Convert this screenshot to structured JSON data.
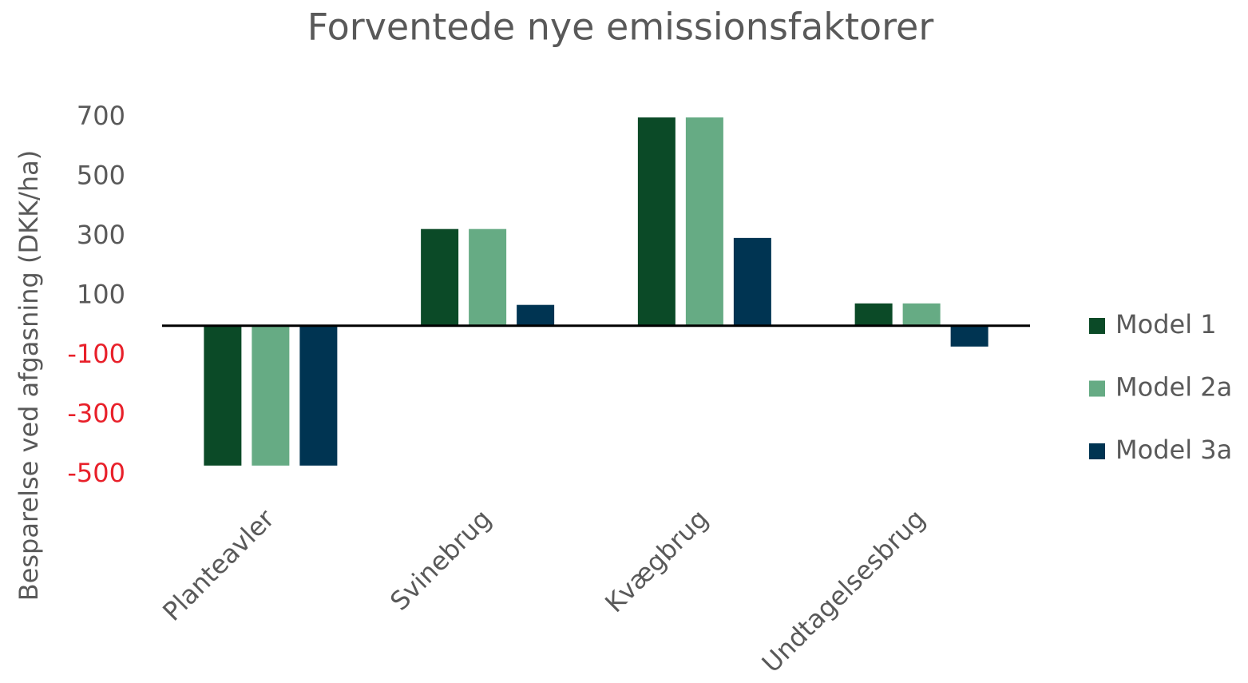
{
  "chart_data": {
    "type": "bar",
    "title": "Forventede nye emissionsfaktorer",
    "y_label": "Besparelse ved afgasning (DKK/ha)",
    "categories": [
      "Planteavler",
      "Svinebrug",
      "Kvægbrug",
      "Undtagelsesbrug"
    ],
    "series": [
      {
        "name": "Model 1",
        "color": "#0b4a27",
        "values": [
          -470,
          325,
          700,
          75
        ]
      },
      {
        "name": "Model 2a",
        "color": "#66ab84",
        "values": [
          -470,
          325,
          700,
          75
        ]
      },
      {
        "name": "Model 3a",
        "color": "#003452",
        "values": [
          -470,
          70,
          295,
          -70
        ]
      }
    ],
    "ylim": [
      -500,
      700
    ],
    "yticks": [
      -500,
      -300,
      -100,
      100,
      300,
      500,
      700
    ],
    "negative_tick_color": "#e8202a",
    "grid": false,
    "legend": "right"
  }
}
